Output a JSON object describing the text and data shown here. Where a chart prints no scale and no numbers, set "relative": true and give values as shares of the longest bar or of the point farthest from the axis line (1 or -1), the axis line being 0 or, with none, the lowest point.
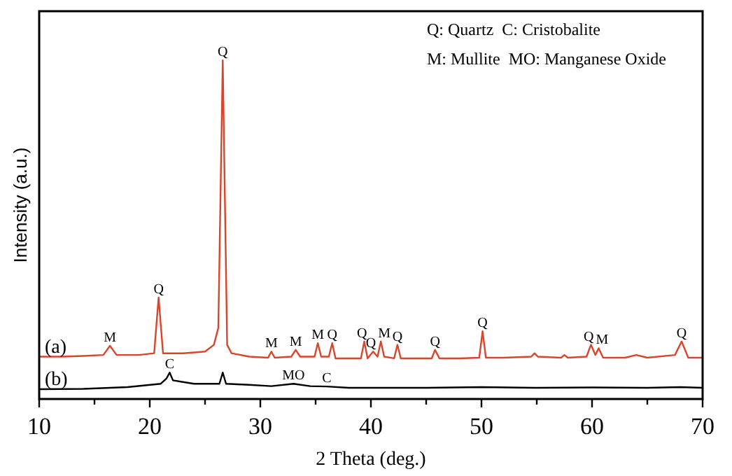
{
  "chart_data": {
    "type": "line",
    "relative": true,
    "xlabel": "2 Theta (deg.)",
    "ylabel": "Intensity (a.u.)",
    "xlim": [
      10,
      70
    ],
    "xticks": [
      10,
      {
        "value": 15,
        "label": null
      },
      20,
      {
        "value": 25,
        "label": null
      },
      30,
      {
        "value": 35,
        "label": null
      },
      40,
      {
        "value": 45,
        "label": null
      },
      50,
      {
        "value": 55,
        "label": null
      },
      60,
      {
        "value": 65,
        "label": null
      },
      70
    ],
    "grid": false,
    "legend": false,
    "marker": "none",
    "line_style": "solid",
    "series": [
      {
        "name": "(a)",
        "color": "#d9452b",
        "x": [
          10,
          12,
          14,
          15.8,
          16.4,
          17,
          19,
          20.4,
          20.8,
          21.2,
          23,
          25,
          25.8,
          26.2,
          26.6,
          27,
          27.4,
          29,
          30.7,
          31,
          31.3,
          32.8,
          33.2,
          33.6,
          34.9,
          35.2,
          35.5,
          36.2,
          36.5,
          36.8,
          38,
          39.1,
          39.4,
          39.7,
          40.2,
          40.6,
          40.9,
          41.2,
          42.1,
          42.4,
          42.7,
          44,
          45.5,
          45.8,
          46.2,
          48,
          49.8,
          50.1,
          50.4,
          52,
          54.5,
          54.8,
          55.1,
          57.2,
          57.5,
          57.8,
          59.5,
          59.9,
          60.3,
          60.6,
          61,
          63,
          64,
          65,
          67.5,
          68.1,
          68.7,
          70
        ],
        "values": [
          0.125,
          0.125,
          0.127,
          0.13,
          0.157,
          0.13,
          0.13,
          0.135,
          0.3,
          0.135,
          0.135,
          0.14,
          0.16,
          0.21,
          1.0,
          0.16,
          0.135,
          0.125,
          0.122,
          0.14,
          0.122,
          0.125,
          0.145,
          0.125,
          0.125,
          0.165,
          0.125,
          0.125,
          0.165,
          0.12,
          0.12,
          0.12,
          0.17,
          0.12,
          0.14,
          0.125,
          0.17,
          0.125,
          0.12,
          0.16,
          0.12,
          0.12,
          0.12,
          0.145,
          0.12,
          0.12,
          0.122,
          0.2,
          0.122,
          0.122,
          0.125,
          0.135,
          0.125,
          0.122,
          0.13,
          0.122,
          0.125,
          0.16,
          0.13,
          0.15,
          0.122,
          0.122,
          0.13,
          0.122,
          0.13,
          0.17,
          0.122,
          0.122
        ]
      },
      {
        "name": "(b)",
        "color": "#000000",
        "x": [
          10,
          14,
          18,
          21,
          21.5,
          21.8,
          22.1,
          24,
          26.3,
          26.6,
          26.9,
          29,
          31,
          33,
          34.5,
          36,
          38,
          45,
          50,
          55,
          60,
          65,
          68,
          70
        ],
        "values": [
          0.029,
          0.03,
          0.035,
          0.045,
          0.06,
          0.078,
          0.055,
          0.045,
          0.045,
          0.078,
          0.045,
          0.042,
          0.038,
          0.045,
          0.038,
          0.037,
          0.033,
          0.033,
          0.035,
          0.033,
          0.034,
          0.033,
          0.035,
          0.033
        ]
      }
    ],
    "annotations": [
      "Q: Quartz  C: Cristobalite",
      "M: Mullite  MO: Manganese Oxide",
      {
        "text": "M",
        "x": 16.4,
        "y": 0.157
      },
      {
        "text": "Q",
        "x": 20.8,
        "y": 0.3
      },
      {
        "text": "Q",
        "x": 26.6,
        "y": 1.0
      },
      {
        "text": "M",
        "x": 31,
        "y": 0.14
      },
      {
        "text": "M",
        "x": 33.2,
        "y": 0.145
      },
      {
        "text": "M",
        "x": 35.2,
        "y": 0.165
      },
      {
        "text": "Q",
        "x": 36.5,
        "y": 0.165
      },
      {
        "text": "Q",
        "x": 39.4,
        "y": 0.17
      },
      {
        "text": "Q",
        "x": 40.2,
        "y": 0.14
      },
      {
        "text": "M",
        "x": 40.9,
        "y": 0.17
      },
      {
        "text": "Q",
        "x": 42.4,
        "y": 0.16
      },
      {
        "text": "Q",
        "x": 45.8,
        "y": 0.145
      },
      {
        "text": "Q",
        "x": 50.1,
        "y": 0.2
      },
      {
        "text": "Q",
        "x": 59.9,
        "y": 0.16
      },
      {
        "text": "M",
        "x": 60.6,
        "y": 0.15
      },
      {
        "text": "Q",
        "x": 68.1,
        "y": 0.17
      },
      {
        "text": "C",
        "x": 21.8,
        "y": 0.078
      },
      {
        "text": "MO",
        "x": 33,
        "y": 0.045
      },
      {
        "text": "C",
        "x": 36,
        "y": 0.037
      }
    ]
  }
}
